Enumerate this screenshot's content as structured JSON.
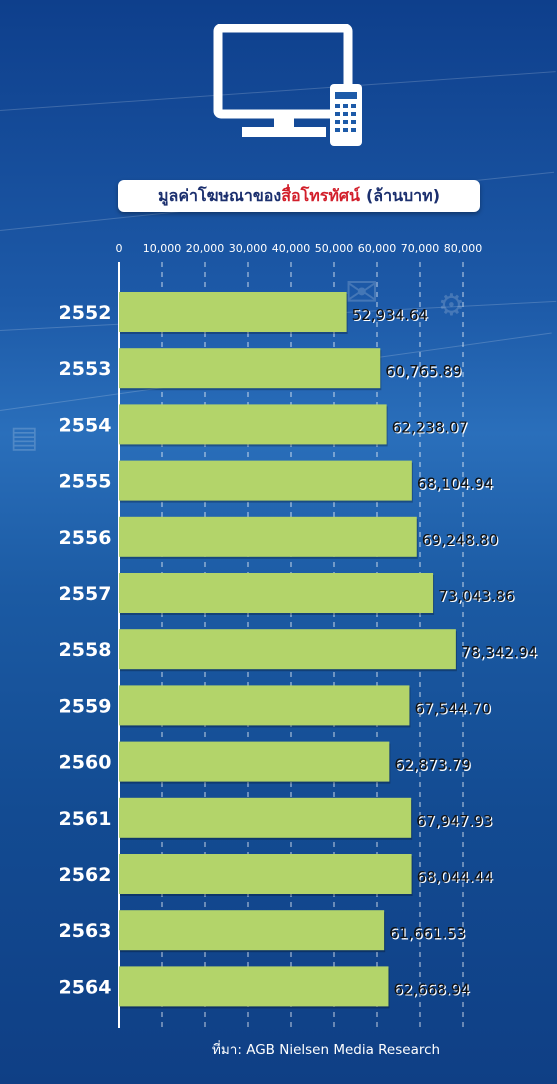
{
  "title": {
    "main": "มูลค่าโฆษณาของ",
    "highlight": "สื่อโทรทัศน์",
    "unit": "(ล้านบาท)"
  },
  "icon": "tv-remote-icon",
  "colors": {
    "bar": "#b3d46a",
    "title_highlight": "#d21f2b",
    "title_text": "#1b2f6e"
  },
  "source": "ที่มา: AGB Nielsen Media Research",
  "chart_data": {
    "type": "bar",
    "orientation": "horizontal",
    "categories": [
      "2552",
      "2553",
      "2554",
      "2555",
      "2556",
      "2557",
      "2558",
      "2559",
      "2560",
      "2561",
      "2562",
      "2563",
      "2564"
    ],
    "values": [
      52934.64,
      60765.89,
      62238.07,
      68104.94,
      69248.8,
      73043.86,
      78342.94,
      67544.7,
      62873.79,
      67947.93,
      68044.44,
      61661.53,
      62668.94
    ],
    "value_labels": [
      "52,934.64",
      "60,765.89",
      "62,238.07",
      "68,104.94",
      "69,248.80",
      "73,043.86",
      "78,342.94",
      "67,544.70",
      "62,873.79",
      "67,947.93",
      "68,044.44",
      "61,661.53",
      "62,668.94"
    ],
    "xticks": [
      "0",
      "10,000",
      "20,000",
      "30,000",
      "40,000",
      "50,000",
      "60,000",
      "70,000",
      "80,000"
    ],
    "xlim": [
      0,
      80000
    ],
    "grid": true,
    "title": "มูลค่าโฆษณาของสื่อโทรทัศน์ (ล้านบาท)"
  }
}
